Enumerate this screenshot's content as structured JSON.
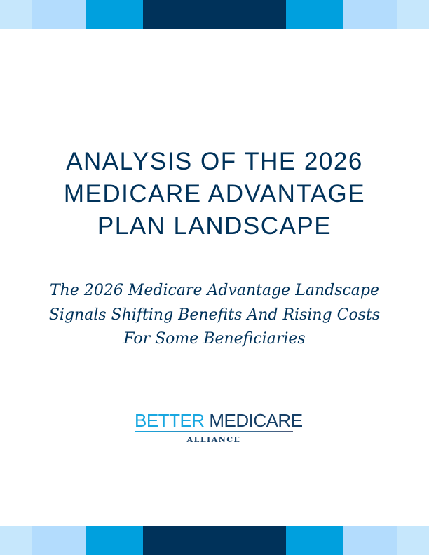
{
  "colors": {
    "navy": "#00325a",
    "blue": "#00a0de",
    "light_blue": "#b3dcfd",
    "pale_blue": "#c6e7fc"
  },
  "title": {
    "lines": [
      "ANALYSIS OF THE 2026",
      "MEDICARE ADVANTAGE",
      "PLAN LANDSCAPE"
    ]
  },
  "subtitle": {
    "lines": [
      "The 2026 Medicare Advantage Landscape",
      "Signals Shifting Benefits And Rising Costs",
      "For Some Beneficiaries"
    ]
  },
  "logo": {
    "word1": "BETTER",
    "word2": "MEDICARE",
    "sub": "ALLIANCE"
  }
}
